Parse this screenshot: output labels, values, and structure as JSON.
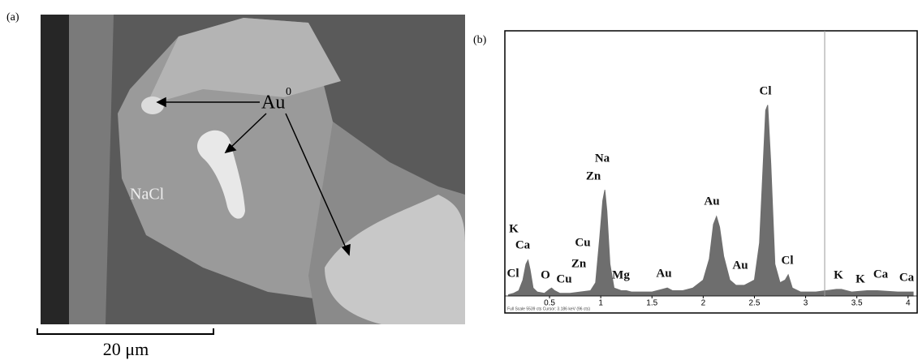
{
  "panel_a": {
    "label": "(a)",
    "arrow_label": "Au",
    "superscript": "0",
    "crystal_label": "NaCl",
    "scale_bar": "20 μm"
  },
  "chart_data": {
    "type": "area",
    "label": "(b)",
    "color": "#6e6e6e",
    "x": [
      0.1,
      0.15,
      0.2,
      0.24,
      0.27,
      0.29,
      0.31,
      0.34,
      0.38,
      0.45,
      0.5,
      0.52,
      0.55,
      0.6,
      0.7,
      0.8,
      0.9,
      0.95,
      0.99,
      1.02,
      1.04,
      1.06,
      1.09,
      1.13,
      1.2,
      1.25,
      1.3,
      1.4,
      1.5,
      1.6,
      1.65,
      1.7,
      1.8,
      1.9,
      2.0,
      2.06,
      2.1,
      2.13,
      2.16,
      2.2,
      2.26,
      2.32,
      2.4,
      2.45,
      2.5,
      2.55,
      2.58,
      2.61,
      2.63,
      2.66,
      2.7,
      2.75,
      2.8,
      2.83,
      2.87,
      2.95,
      3.1,
      3.3,
      3.35,
      3.45,
      3.6,
      3.7,
      3.9,
      4.05
    ],
    "values": [
      0.5,
      1,
      2,
      6,
      12,
      13.5,
      10,
      3,
      1.5,
      1,
      2.5,
      3,
      2,
      1,
      1,
      1.5,
      2,
      5,
      22,
      36,
      40,
      32,
      12,
      3,
      2,
      2,
      1.5,
      1.5,
      1.5,
      2.5,
      3,
      2,
      2,
      3,
      6,
      14,
      27,
      30,
      26,
      15,
      6,
      4,
      4,
      5,
      6,
      20,
      45,
      70,
      72,
      50,
      12,
      5,
      6,
      8,
      3,
      1.5,
      1.5,
      2.5,
      2.5,
      1.5,
      2,
      2,
      1.5,
      1.5
    ],
    "xlim": [
      0.064,
      4.089
    ],
    "ylim": [
      0,
      100
    ],
    "xticks": [
      0.5,
      1,
      1.5,
      2,
      2.5,
      3,
      3.5,
      4
    ],
    "cursor": 3.186,
    "status": "Full Scale 5539 cts Cursor: 3.186 keV (96 cts)",
    "peak_labels": [
      "K",
      "Ca",
      "Cl",
      "O",
      "Cu",
      "Cu",
      "Zn",
      "Mg",
      "Au",
      "Na",
      "Zn",
      "Au",
      "Au",
      "Cl",
      "Cl",
      "K",
      "K",
      "Ca",
      "Ca"
    ]
  }
}
